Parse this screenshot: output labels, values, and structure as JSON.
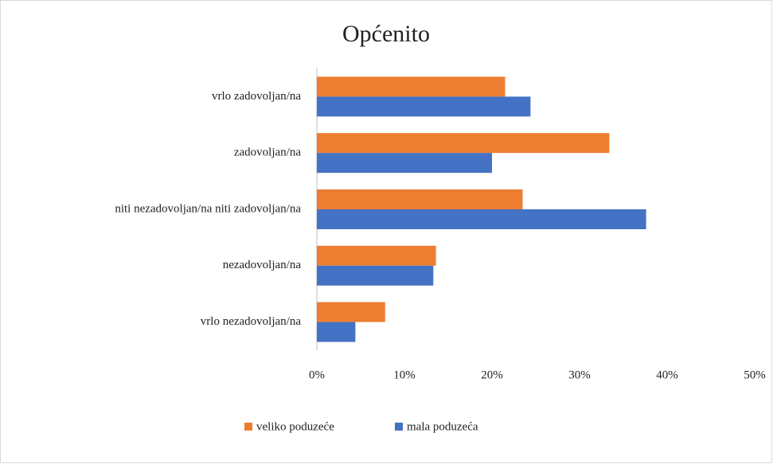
{
  "chart_data": {
    "type": "bar",
    "orientation": "horizontal",
    "title": "Općenito",
    "categories": [
      "vrlo zadovoljan/na",
      "zadovoljan/na",
      "niti nezadovoljan/na niti zadovoljan/na",
      "nezadovoljan/na",
      "vrlo nezadovoljan/na"
    ],
    "series": [
      {
        "name": "veliko poduzeće",
        "color": "#ed7d31",
        "values": [
          21.5,
          33.4,
          23.5,
          13.6,
          7.8
        ]
      },
      {
        "name": "mala poduzeća",
        "color": "#4472c4",
        "values": [
          24.4,
          20.0,
          37.6,
          13.3,
          4.4
        ]
      }
    ],
    "xlim": [
      0,
      50
    ],
    "xticks": [
      {
        "value": 0,
        "label": "0%"
      },
      {
        "value": 10,
        "label": "10%"
      },
      {
        "value": 20,
        "label": "20%"
      },
      {
        "value": 30,
        "label": "30%"
      },
      {
        "value": 40,
        "label": "40%"
      },
      {
        "value": 50,
        "label": "50%"
      }
    ],
    "grid": false,
    "legend": "bottom"
  }
}
